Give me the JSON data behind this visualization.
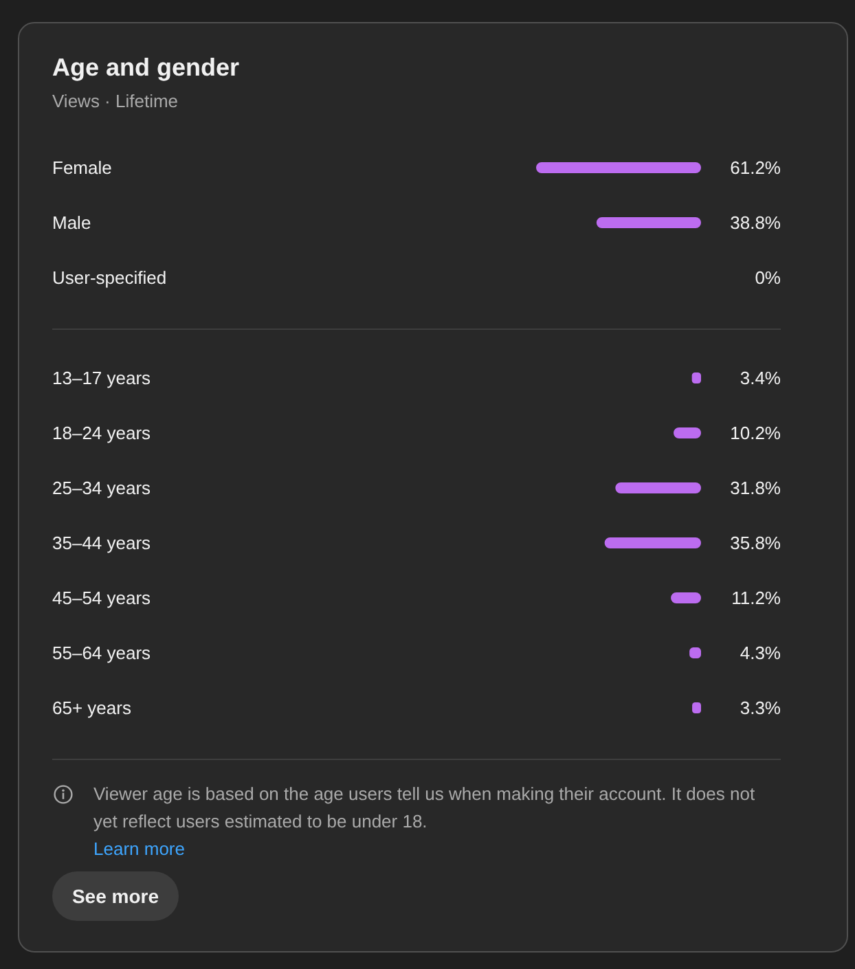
{
  "chart_data": [
    {
      "type": "bar",
      "orientation": "horizontal",
      "title": "Age and gender",
      "subtitle": "Views · Lifetime",
      "categories": [
        "Female",
        "Male",
        "User-specified"
      ],
      "values": [
        61.2,
        38.8,
        0
      ],
      "value_labels": [
        "61.2%",
        "38.8%",
        "0%"
      ],
      "color": "#bc6cf0",
      "tick_labels": "y"
    },
    {
      "type": "bar",
      "orientation": "horizontal",
      "categories": [
        "13–17 years",
        "18–24 years",
        "25–34 years",
        "35–44 years",
        "45–54 years",
        "55–64 years",
        "65+ years"
      ],
      "values": [
        3.4,
        10.2,
        31.8,
        35.8,
        11.2,
        4.3,
        3.3
      ],
      "value_labels": [
        "3.4%",
        "10.2%",
        "31.8%",
        "35.8%",
        "11.2%",
        "4.3%",
        "3.3%"
      ],
      "color": "#bc6cf0",
      "tick_labels": "y",
      "annotations": [
        "Viewer age is based on the age users tell us when making their account. It does not yet reflect users estimated to be under 18.",
        "Learn more",
        "See more"
      ]
    }
  ]
}
